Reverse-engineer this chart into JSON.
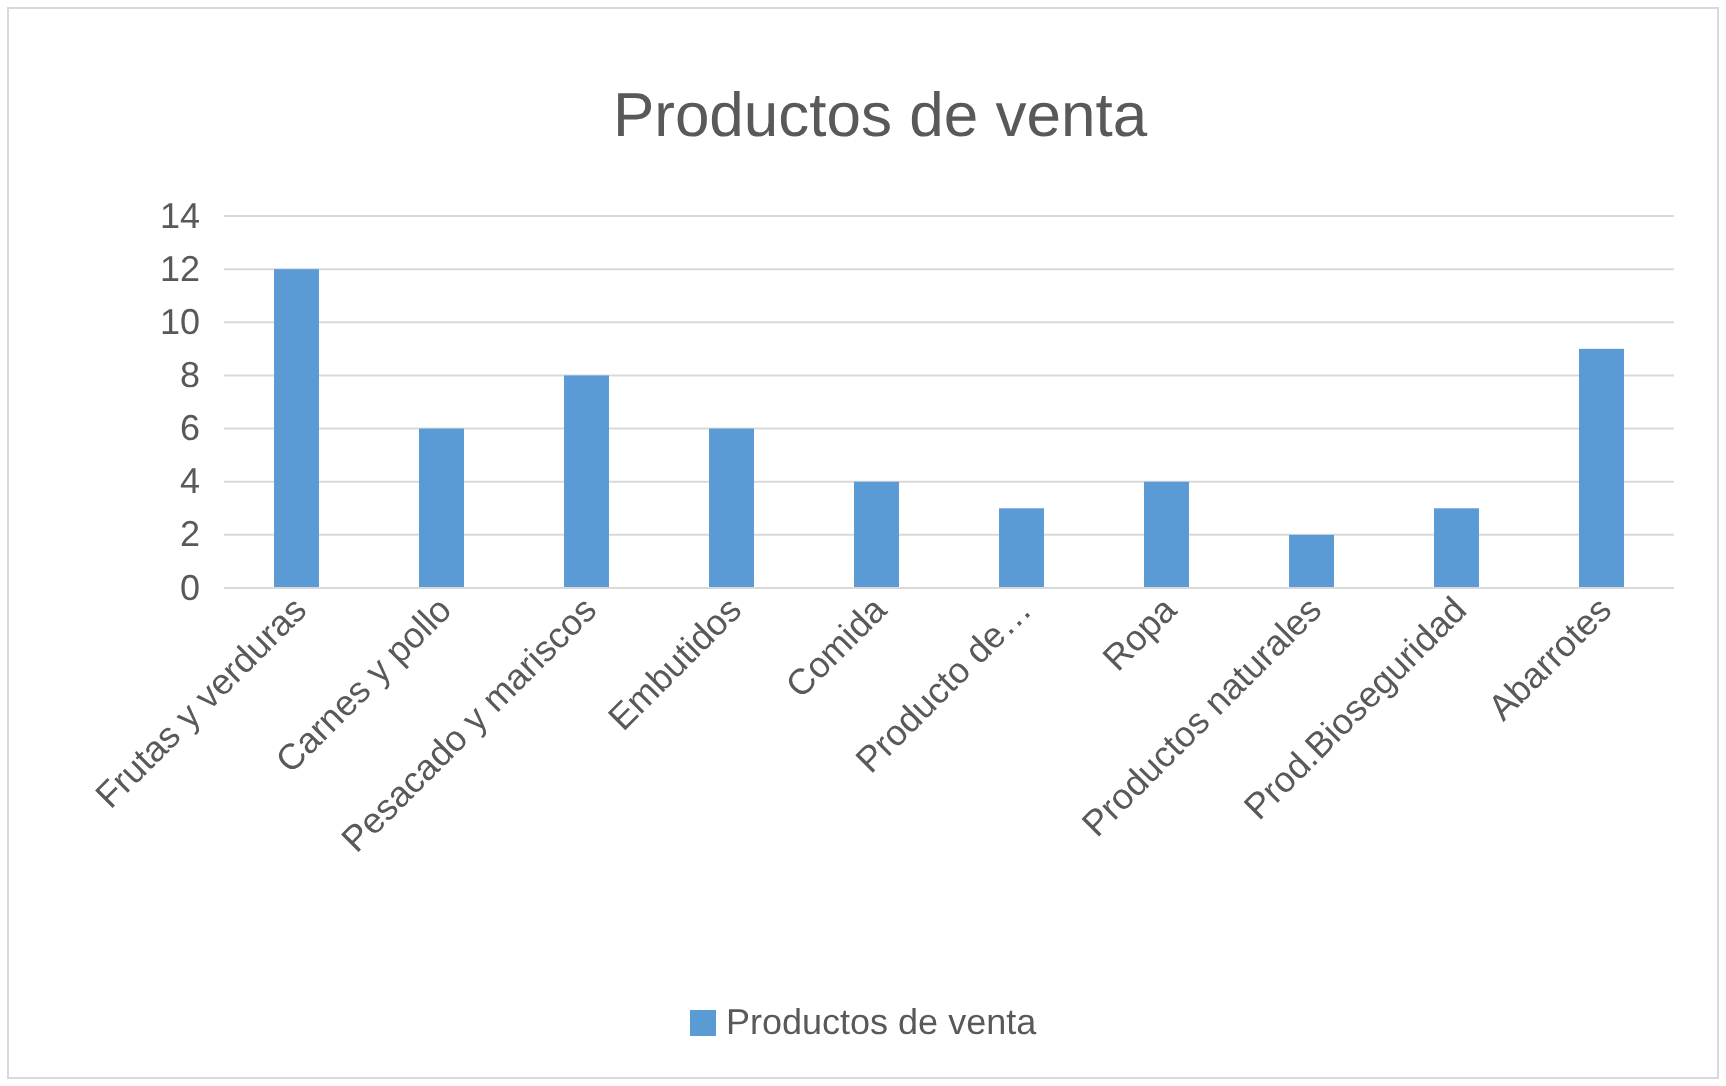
{
  "chart_data": {
    "type": "bar",
    "title": "Productos de venta",
    "categories": [
      "Frutas y verduras",
      "Carnes y pollo",
      "Pesacado y mariscos",
      "Embutidos",
      "Comida",
      "Producto de…",
      "Ropa",
      "Productos naturales",
      "Prod.Bioseguridad",
      "Abarrotes"
    ],
    "series": [
      {
        "name": "Productos de venta",
        "color": "#5b9bd5",
        "values": [
          12,
          6,
          8,
          6,
          4,
          3,
          4,
          2,
          3,
          9
        ]
      }
    ],
    "ylim": [
      0,
      14
    ],
    "yticks": [
      0,
      2,
      4,
      6,
      8,
      10,
      12,
      14
    ],
    "grid": "y",
    "legend": "bottom"
  }
}
